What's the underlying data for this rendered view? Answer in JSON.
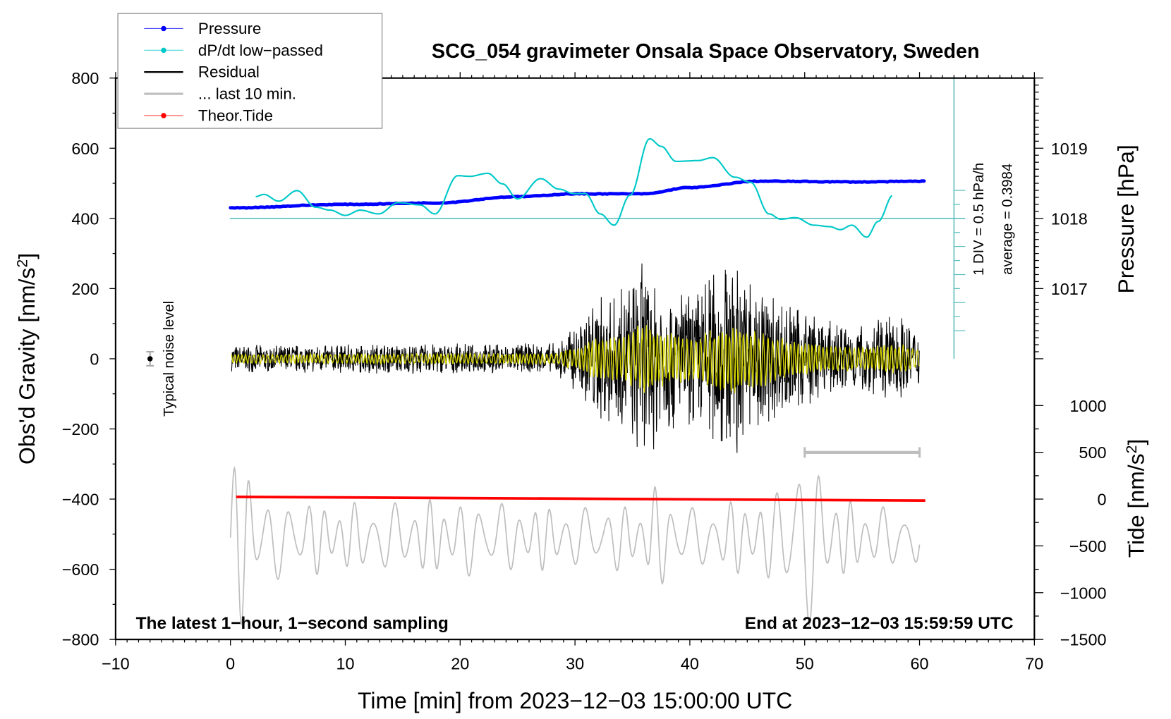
{
  "chart_data": {
    "type": "line",
    "title": "SCG_054 gravimeter Onsala Space Observatory, Sweden",
    "xlabel": "Time [min] from 2023−12−03 15:00:00 UTC",
    "ylabel_left": "Obs'd Gravity [nm/s",
    "ylabel_left_sup": "2",
    "ylabel_left_end": "]",
    "ylabel_right_pressure": "Pressure [hPa]",
    "ylabel_right_tide": "Tide [nm/s",
    "ylabel_right_tide_sup": "2",
    "ylabel_right_tide_end": "]",
    "xlim": [
      -10,
      70
    ],
    "ylim": [
      -800,
      800
    ],
    "x_ticks": [
      "−10",
      "0",
      "10",
      "20",
      "30",
      "40",
      "50",
      "60",
      "70"
    ],
    "y_ticks": [
      "800",
      "600",
      "400",
      "200",
      "0",
      "−200",
      "−400",
      "−600",
      "−800"
    ],
    "pressure_ticks": [
      "1019",
      "1018",
      "1017"
    ],
    "tide_ticks": [
      "1000",
      "500",
      "0",
      "−500",
      "−1000",
      "−1500"
    ],
    "annotations": {
      "bottom_left": "The latest 1−hour, 1−second sampling",
      "bottom_right": "End at 2023−12−03 15:59:59 UTC",
      "div_label": "1 DIV = 0.5 hPa/h",
      "average_label": "average = 0.3984",
      "noise_label": "Typical noise level"
    },
    "legend": {
      "position": "top-left",
      "entries": [
        {
          "label": "Pressure",
          "color": "#0000ff",
          "marker": true
        },
        {
          "label": "dP/dt low−passed",
          "color": "#00c8c8",
          "marker": true
        },
        {
          "label": "Residual",
          "color": "#000000",
          "marker": false
        },
        {
          "label": "... last 10 min.",
          "color": "#bebebe",
          "marker": false
        },
        {
          "label": "Theor.Tide",
          "color": "#ff0000",
          "marker": true
        }
      ]
    },
    "colors": {
      "pressure": "#0000ff",
      "dpdt": "#00c8c8",
      "dpdt_axis": "#5fbfbf",
      "residual": "#000000",
      "residual_filtered": "#d4d400",
      "last10": "#bebebe",
      "tide": "#ff0000"
    },
    "pressure_hPa": {
      "t": [
        0,
        10,
        17.8,
        25,
        30,
        36,
        40,
        46,
        55,
        60.5
      ],
      "v": [
        1018.15,
        1018.2,
        1018.22,
        1018.31,
        1018.35,
        1018.35,
        1018.44,
        1018.53,
        1018.52,
        1018.53
      ]
    },
    "dpdt_hPa_per_h": {
      "average": 0.3984,
      "t": [
        2.2,
        2.9,
        4.2,
        5.8,
        7.4,
        8.7,
        10,
        11.3,
        12.9,
        14.6,
        16.5,
        17.8,
        19.8,
        20.8,
        22.4,
        23.7,
        25,
        27,
        28.6,
        29.9,
        30.9,
        32.2,
        33.4,
        34.8,
        36.5,
        37.5,
        38.8,
        40.7,
        42,
        43.9,
        45.3,
        46.9,
        47.9,
        49.2,
        50.8,
        52.2,
        53.1,
        54.1,
        55.4,
        56.4,
        57.7
      ],
      "v": [
        0.786,
        0.826,
        0.706,
        0.893,
        0.599,
        0.545,
        0.452,
        0.545,
        0.479,
        0.679,
        0.639,
        0.479,
        1.16,
        1.147,
        1.201,
        1.013,
        0.746,
        1.107,
        0.92,
        0.84,
        0.84,
        0.479,
        0.278,
        0.813,
        1.816,
        1.682,
        1.414,
        1.428,
        1.481,
        1.134,
        1.04,
        0.479,
        0.385,
        0.412,
        0.278,
        0.251,
        0.198,
        0.278,
        0.064,
        0.345,
        0.813
      ]
    },
    "theor_tide_nm_s2": {
      "t": [
        0.5,
        60.5
      ],
      "v": [
        24,
        -16
      ]
    },
    "residual_envelope_nm_s2": {
      "t": [
        0,
        28,
        30,
        32,
        34,
        36,
        37,
        38,
        40,
        42,
        44,
        46,
        48,
        50,
        52,
        55,
        58,
        60
      ],
      "amp": [
        40,
        45,
        90,
        180,
        200,
        290,
        260,
        220,
        200,
        250,
        290,
        240,
        170,
        140,
        110,
        100,
        130,
        80
      ]
    },
    "last10_curve_nm_s2": {
      "center": -510,
      "t": [
        0,
        1,
        3,
        10,
        20,
        30,
        36,
        37,
        40,
        47,
        49,
        51,
        53,
        57,
        60
      ],
      "amp": [
        220,
        250,
        120,
        100,
        110,
        90,
        100,
        150,
        90,
        120,
        240,
        250,
        110,
        90,
        90
      ]
    },
    "noise_level": {
      "t": -7,
      "value": 0,
      "error": 20
    },
    "last10_bar": {
      "t_start": 50,
      "t_end": 60,
      "value": -267
    }
  }
}
